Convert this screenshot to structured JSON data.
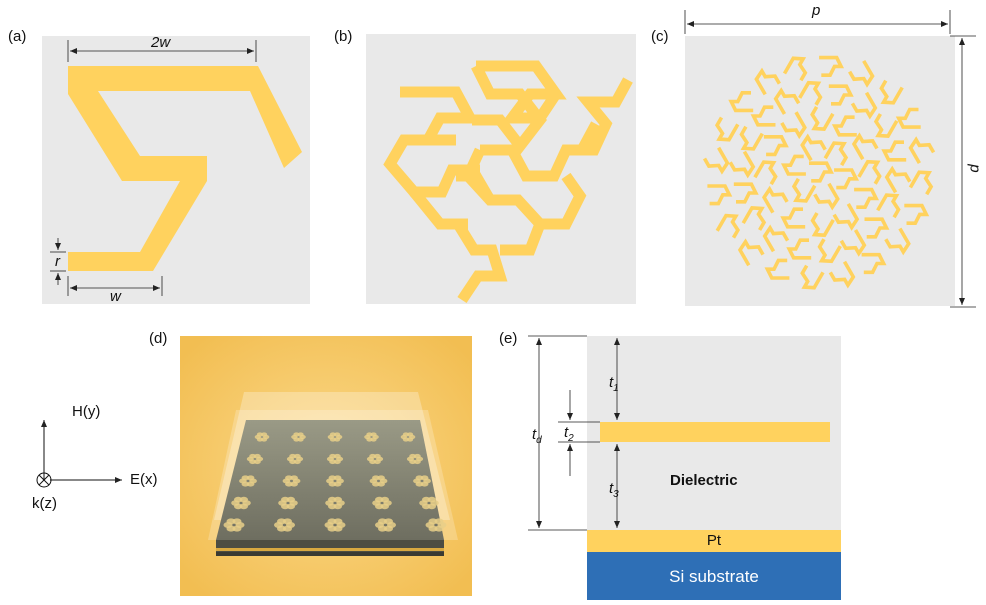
{
  "panels": {
    "a": {
      "label": "(a)",
      "dim_2w": "2w",
      "dim_w": "w",
      "dim_r": "r"
    },
    "b": {
      "label": "(b)"
    },
    "c": {
      "label": "(c)",
      "dim_p": "p",
      "dim_d": "d"
    },
    "d": {
      "label": "(d)",
      "axis_h": "H(y)",
      "axis_e": "E(x)",
      "axis_k": "k(z)",
      "array_rows": 5,
      "array_cols": 5
    },
    "e": {
      "label": "(e)",
      "t1": "t",
      "t1_sub": "1",
      "t2": "t",
      "t2_sub": "2",
      "t3": "t",
      "t3_sub": "3",
      "td": "t",
      "td_sub": "d",
      "dielectric": "Dielectric",
      "pt": "Pt",
      "si": "Si substrate"
    }
  },
  "colors": {
    "gold": "#ffd25e",
    "panel_bg": "#e9e9e9",
    "substrate": "#2e6fb6",
    "bg_d": "#f6c765"
  }
}
